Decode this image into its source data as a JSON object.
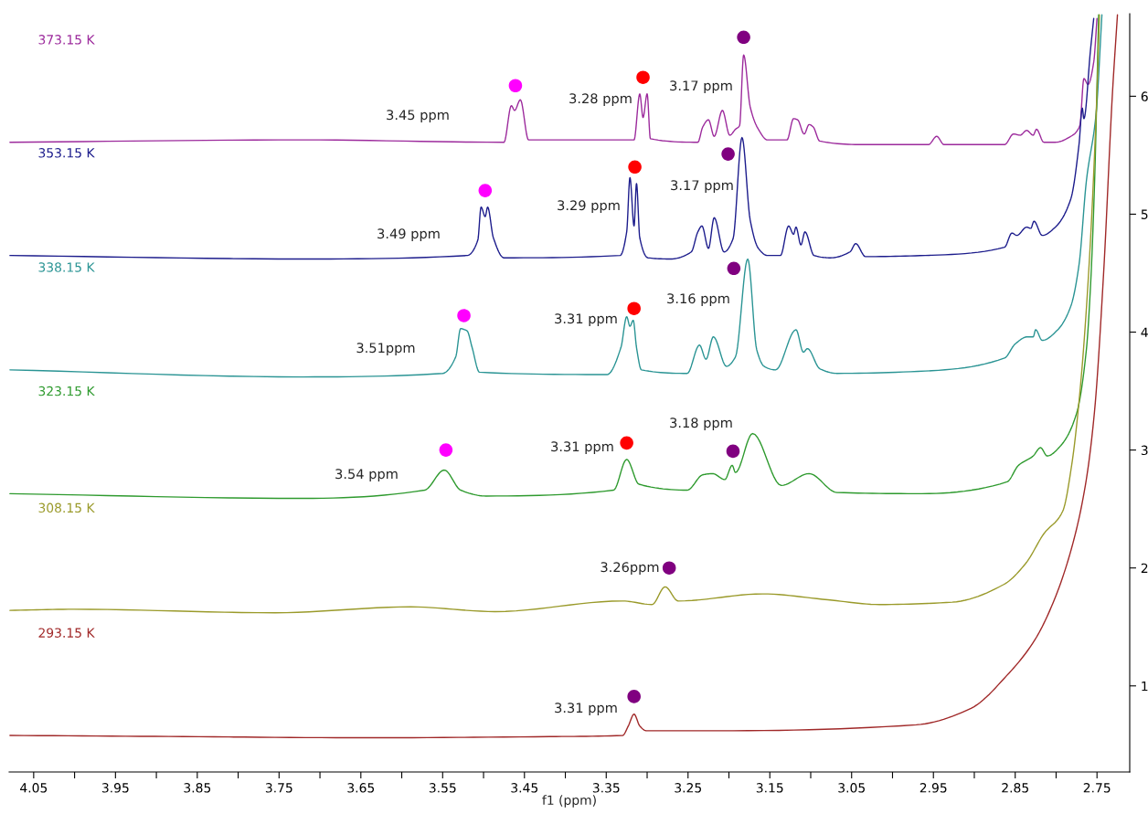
{
  "chart_data": {
    "type": "line",
    "xlabel": "f1 (ppm)",
    "xlim": [
      4.08,
      2.71
    ],
    "ylim": [
      0.27,
      6.7
    ],
    "xticks": [
      4.05,
      {
        "value": 4.0,
        "label": null
      },
      3.95,
      {
        "value": 3.9,
        "label": null
      },
      3.85,
      {
        "value": 3.8,
        "label": null
      },
      3.75,
      {
        "value": 3.7,
        "label": null
      },
      3.65,
      {
        "value": 3.6,
        "label": null
      },
      3.55,
      {
        "value": 3.5,
        "label": null
      },
      3.45,
      {
        "value": 3.4,
        "label": null
      },
      3.35,
      {
        "value": 3.3,
        "label": null
      },
      3.25,
      {
        "value": 3.2,
        "label": null
      },
      3.15,
      {
        "value": 3.1,
        "label": null
      },
      3.05,
      {
        "value": 3.0,
        "label": null
      },
      2.95,
      {
        "value": 2.9,
        "label": null
      },
      2.85,
      {
        "value": 2.8,
        "label": null
      },
      2.75
    ],
    "yticks": [
      1,
      2,
      3,
      4,
      5,
      6
    ],
    "grid": false,
    "line_style": "solid",
    "series": [
      {
        "name": "373.15 K",
        "color": "#9c2a9c",
        "x": [
          4.079,
          3.721,
          3.475,
          3.466,
          3.462,
          3.455,
          3.445,
          3.316,
          3.309,
          3.305,
          3.3,
          3.296,
          3.238,
          3.232,
          3.225,
          3.218,
          3.208,
          3.199,
          3.192,
          3.187,
          3.182,
          3.174,
          3.164,
          3.153,
          3.129,
          3.121,
          3.116,
          3.108,
          3.102,
          3.097,
          3.089,
          3.037,
          2.956,
          2.946,
          2.937,
          2.863,
          2.852,
          2.844,
          2.836,
          2.828,
          2.824,
          2.815,
          2.801,
          2.782,
          2.771,
          2.766,
          2.761,
          2.754,
          2.75
        ],
        "values": [
          5.61,
          5.63,
          5.61,
          5.92,
          5.88,
          5.97,
          5.63,
          5.63,
          6.02,
          5.82,
          6.02,
          5.64,
          5.61,
          5.74,
          5.8,
          5.66,
          5.88,
          5.67,
          5.72,
          5.75,
          6.35,
          5.91,
          5.72,
          5.63,
          5.63,
          5.81,
          5.8,
          5.68,
          5.76,
          5.74,
          5.62,
          5.59,
          5.59,
          5.66,
          5.59,
          5.59,
          5.68,
          5.67,
          5.71,
          5.67,
          5.72,
          5.61,
          5.61,
          5.66,
          5.75,
          6.15,
          6.1,
          6.29,
          6.66
        ]
      },
      {
        "name": "353.15 K",
        "color": "#1c1c8c",
        "x": [
          4.079,
          3.721,
          3.52,
          3.507,
          3.503,
          3.498,
          3.495,
          3.488,
          3.475,
          3.333,
          3.325,
          3.321,
          3.316,
          3.313,
          3.309,
          3.299,
          3.272,
          3.246,
          3.238,
          3.233,
          3.225,
          3.218,
          3.206,
          3.195,
          3.184,
          3.174,
          3.164,
          3.153,
          3.137,
          3.127,
          3.121,
          3.118,
          3.112,
          3.107,
          3.096,
          3.076,
          3.052,
          3.045,
          3.033,
          2.96,
          2.863,
          2.854,
          2.848,
          2.836,
          2.831,
          2.827,
          2.817,
          2.801,
          2.782,
          2.772,
          2.768,
          2.766,
          2.758,
          2.754
        ],
        "values": [
          4.65,
          4.62,
          4.65,
          4.78,
          5.06,
          4.98,
          5.06,
          4.8,
          4.63,
          4.65,
          4.85,
          5.31,
          4.9,
          5.26,
          4.8,
          4.63,
          4.62,
          4.68,
          4.85,
          4.9,
          4.71,
          4.97,
          4.68,
          4.79,
          5.65,
          4.95,
          4.71,
          4.65,
          4.65,
          4.9,
          4.83,
          4.89,
          4.74,
          4.85,
          4.65,
          4.63,
          4.68,
          4.75,
          4.64,
          4.65,
          4.72,
          4.84,
          4.82,
          4.89,
          4.88,
          4.94,
          4.82,
          4.89,
          5.13,
          5.59,
          5.9,
          5.81,
          6.39,
          6.66
        ]
      },
      {
        "name": "338.15 K",
        "color": "#2a9494",
        "x": [
          4.079,
          3.721,
          3.55,
          3.534,
          3.528,
          3.523,
          3.52,
          3.514,
          3.505,
          3.349,
          3.332,
          3.325,
          3.321,
          3.317,
          3.313,
          3.307,
          3.251,
          3.236,
          3.228,
          3.219,
          3.203,
          3.192,
          3.177,
          3.166,
          3.157,
          3.143,
          3.118,
          3.109,
          3.104,
          3.089,
          3.068,
          2.96,
          2.863,
          2.85,
          2.835,
          2.828,
          2.825,
          2.817,
          2.798,
          2.782,
          2.772,
          2.763,
          2.751,
          2.744
        ],
        "values": [
          3.68,
          3.62,
          3.65,
          3.79,
          4.03,
          4.02,
          4.01,
          3.87,
          3.66,
          3.64,
          3.87,
          4.13,
          4.05,
          4.1,
          3.87,
          3.68,
          3.65,
          3.89,
          3.77,
          3.96,
          3.71,
          3.79,
          4.62,
          3.85,
          3.71,
          3.68,
          4.02,
          3.83,
          3.86,
          3.69,
          3.65,
          3.67,
          3.78,
          3.9,
          3.96,
          3.96,
          4.02,
          3.93,
          4.02,
          4.22,
          4.57,
          5.28,
          5.86,
          6.69
        ]
      },
      {
        "name": "323.15 K",
        "color": "#2e9a2e",
        "x": [
          4.079,
          3.721,
          3.572,
          3.548,
          3.528,
          3.497,
          3.341,
          3.325,
          3.31,
          3.251,
          3.232,
          3.22,
          3.205,
          3.196,
          3.192,
          3.171,
          3.136,
          3.102,
          3.068,
          2.964,
          2.86,
          2.846,
          2.828,
          2.819,
          2.811,
          2.794,
          2.775,
          2.763,
          2.758,
          2.753,
          2.748
        ],
        "values": [
          2.63,
          2.59,
          2.66,
          2.83,
          2.66,
          2.61,
          2.66,
          2.92,
          2.71,
          2.66,
          2.79,
          2.8,
          2.75,
          2.87,
          2.81,
          3.14,
          2.7,
          2.8,
          2.64,
          2.63,
          2.73,
          2.87,
          2.95,
          3.02,
          2.95,
          3.04,
          3.31,
          3.85,
          4.38,
          5.26,
          6.69
        ]
      },
      {
        "name": "308.15 K",
        "color": "#9a9a2a",
        "x": [
          4.079,
          4.001,
          3.755,
          3.589,
          3.486,
          3.33,
          3.294,
          3.278,
          3.262,
          3.159,
          3.079,
          3.016,
          2.927,
          2.864,
          2.837,
          2.815,
          2.792,
          2.781,
          2.77,
          2.759,
          2.75,
          2.747
        ],
        "values": [
          1.64,
          1.65,
          1.62,
          1.67,
          1.63,
          1.72,
          1.69,
          1.84,
          1.72,
          1.78,
          1.73,
          1.69,
          1.71,
          1.86,
          2.04,
          2.29,
          2.48,
          2.87,
          3.56,
          4.65,
          6.04,
          6.69
        ]
      },
      {
        "name": "293.15 K",
        "color": "#a02828",
        "x": [
          4.079,
          3.867,
          3.643,
          3.419,
          3.33,
          3.323,
          3.316,
          3.309,
          3.301,
          3.195,
          2.971,
          2.904,
          2.86,
          2.826,
          2.804,
          2.781,
          2.764,
          2.753,
          2.742,
          2.731,
          2.725
        ],
        "values": [
          0.58,
          0.57,
          0.56,
          0.57,
          0.58,
          0.66,
          0.76,
          0.66,
          0.62,
          0.62,
          0.67,
          0.81,
          1.09,
          1.39,
          1.7,
          2.17,
          2.71,
          3.33,
          4.49,
          6.04,
          6.69
        ]
      },
      {
        "type": "scatter",
        "marker": "circle",
        "color": "#ff00ff",
        "x": [
          3.461,
          3.498,
          3.524,
          3.546
        ],
        "values": [
          6.09,
          5.2,
          4.14,
          3.0
        ]
      },
      {
        "type": "scatter",
        "marker": "circle",
        "color": "#ff0000",
        "x": [
          3.305,
          3.315,
          3.316,
          3.325
        ],
        "values": [
          6.16,
          5.4,
          4.2,
          3.06
        ]
      },
      {
        "type": "scatter",
        "marker": "circle",
        "color": "#800080",
        "x": [
          3.182,
          3.201,
          3.194,
          3.195,
          3.273,
          3.316
        ],
        "values": [
          6.5,
          5.51,
          4.54,
          2.99,
          2.0,
          0.91
        ]
      }
    ],
    "annotations": [
      "3.45 ppm",
      "3.28 ppm",
      "3.17 ppm",
      "3.49 ppm",
      "3.29 ppm",
      "3.17 ppm",
      "3.51ppm",
      "3.31 ppm",
      "3.16 ppm",
      "3.54 ppm",
      "3.31 ppm",
      "3.18 ppm",
      "3.26ppm",
      "3.31 ppm"
    ]
  }
}
